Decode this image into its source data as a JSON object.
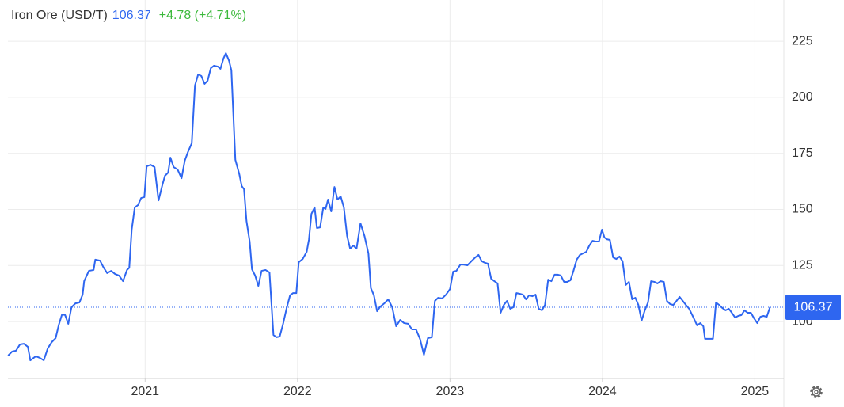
{
  "chart_data": {
    "type": "line",
    "title": "Iron Ore (USD/T)",
    "last_value": 106.37,
    "change_text": "+4.78 (+4.71%)",
    "xlim": [
      2020.1,
      2025.19
    ],
    "xticks": [
      2021,
      2022,
      2023,
      2024,
      2025
    ],
    "ylim": [
      74.6,
      243.4
    ],
    "yticks": [
      100,
      125,
      150,
      175,
      200,
      225
    ],
    "grid": true,
    "series": [
      {
        "name": "Iron Ore",
        "color": "#2e66f0",
        "x": [
          2020.101,
          2020.127,
          2020.153,
          2020.179,
          2020.205,
          2020.231,
          2020.247,
          2020.283,
          2020.309,
          2020.335,
          2020.361,
          2020.387,
          2020.413,
          2020.434,
          2020.455,
          2020.475,
          2020.496,
          2020.517,
          2020.543,
          2020.569,
          2020.59,
          2020.6,
          2020.631,
          2020.662,
          2020.673,
          2020.704,
          2020.725,
          2020.751,
          2020.777,
          2020.803,
          2020.829,
          2020.855,
          2020.881,
          2020.896,
          2020.912,
          2020.932,
          2020.953,
          2020.974,
          2020.995,
          2021.01,
          2021.036,
          2021.062,
          2021.088,
          2021.114,
          2021.13,
          2021.151,
          2021.166,
          2021.187,
          2021.213,
          2021.239,
          2021.26,
          2021.281,
          2021.306,
          2021.327,
          2021.348,
          2021.369,
          2021.39,
          2021.41,
          2021.431,
          2021.452,
          2021.478,
          2021.494,
          2021.514,
          2021.53,
          2021.551,
          2021.566,
          2021.592,
          2021.618,
          2021.634,
          2021.649,
          2021.665,
          2021.686,
          2021.701,
          2021.722,
          2021.743,
          2021.764,
          2021.79,
          2021.816,
          2021.842,
          2021.862,
          2021.883,
          2021.904,
          2021.93,
          2021.951,
          2021.971,
          2021.992,
          2022.008,
          2022.034,
          2022.06,
          2022.075,
          2022.091,
          2022.112,
          2022.127,
          2022.148,
          2022.169,
          2022.184,
          2022.2,
          2022.221,
          2022.242,
          2022.262,
          2022.283,
          2022.304,
          2022.325,
          2022.345,
          2022.366,
          2022.387,
          2022.413,
          2022.439,
          2022.465,
          2022.481,
          2022.501,
          2022.522,
          2022.543,
          2022.569,
          2022.595,
          2022.621,
          2022.647,
          2022.673,
          2022.699,
          2022.725,
          2022.751,
          2022.777,
          2022.803,
          2022.829,
          2022.855,
          2022.881,
          2022.901,
          2022.922,
          2022.948,
          2022.974,
          2023.0,
          2023.021,
          2023.042,
          2023.068,
          2023.088,
          2023.114,
          2023.14,
          2023.166,
          2023.187,
          2023.208,
          2023.229,
          2023.249,
          2023.27,
          2023.291,
          2023.312,
          2023.332,
          2023.353,
          2023.374,
          2023.395,
          2023.416,
          2023.436,
          2023.457,
          2023.478,
          2023.499,
          2023.519,
          2023.54,
          2023.561,
          2023.582,
          2023.603,
          2023.623,
          2023.644,
          2023.665,
          2023.686,
          2023.706,
          2023.727,
          2023.748,
          2023.769,
          2023.79,
          2023.81,
          2023.831,
          2023.852,
          2023.873,
          2023.894,
          2023.914,
          2023.935,
          2023.956,
          2023.977,
          2023.997,
          2024.013,
          2024.029,
          2024.049,
          2024.07,
          2024.091,
          2024.112,
          2024.132,
          2024.153,
          2024.174,
          2024.195,
          2024.216,
          2024.236,
          2024.257,
          2024.278,
          2024.299,
          2024.319,
          2024.34,
          2024.361,
          2024.382,
          2024.403,
          2024.423,
          2024.444,
          2024.465,
          2024.486,
          2024.506,
          2024.527,
          2024.548,
          2024.569,
          2024.595,
          2024.621,
          2024.642,
          2024.662,
          2024.673,
          2024.699,
          2024.725,
          2024.745,
          2024.766,
          2024.787,
          2024.808,
          2024.829,
          2024.849,
          2024.87,
          2024.891,
          2024.912,
          2024.932,
          2024.953,
          2024.974,
          2024.995,
          2025.016,
          2025.036,
          2025.057,
          2025.078,
          2025.099
        ],
        "values": [
          84.8,
          86.6,
          87.0,
          89.8,
          90.1,
          88.7,
          82.7,
          84.5,
          83.8,
          82.7,
          88.0,
          90.8,
          92.6,
          98.6,
          103.2,
          102.9,
          99.0,
          106.4,
          108.1,
          108.5,
          112.0,
          118.0,
          122.6,
          123.0,
          127.6,
          127.2,
          124.4,
          121.6,
          122.6,
          121.2,
          120.5,
          118.0,
          123.0,
          124.0,
          141.0,
          150.9,
          151.9,
          155.1,
          155.5,
          169.2,
          169.9,
          168.9,
          154.0,
          161.1,
          165.0,
          166.4,
          173.1,
          168.9,
          167.8,
          163.9,
          171.7,
          175.6,
          179.5,
          205.3,
          210.2,
          209.5,
          206.0,
          207.4,
          213.0,
          214.1,
          213.7,
          212.7,
          217.3,
          219.7,
          216.2,
          212.0,
          172.1,
          165.7,
          160.4,
          159.0,
          144.9,
          135.7,
          123.3,
          120.5,
          115.9,
          122.6,
          123.0,
          121.9,
          94.0,
          93.0,
          93.3,
          98.6,
          106.4,
          111.7,
          112.7,
          112.7,
          126.5,
          127.9,
          131.1,
          136.7,
          148.0,
          150.9,
          141.7,
          142.0,
          150.9,
          150.2,
          154.4,
          149.1,
          160.0,
          154.4,
          155.8,
          150.9,
          138.2,
          132.5,
          133.9,
          132.5,
          143.8,
          138.2,
          130.4,
          114.9,
          111.7,
          104.6,
          106.7,
          108.1,
          109.9,
          106.4,
          97.9,
          100.7,
          99.3,
          99.0,
          96.5,
          96.5,
          92.3,
          85.2,
          92.6,
          93.0,
          109.2,
          110.6,
          110.3,
          112.0,
          114.5,
          122.3,
          122.6,
          125.4,
          125.4,
          125.1,
          126.9,
          128.6,
          129.7,
          126.9,
          126.2,
          125.8,
          119.1,
          118.0,
          117.0,
          103.9,
          107.4,
          109.2,
          105.7,
          106.4,
          112.7,
          112.4,
          112.0,
          109.9,
          111.7,
          111.3,
          112.0,
          105.7,
          105.0,
          107.4,
          118.7,
          118.0,
          120.9,
          120.9,
          120.5,
          117.7,
          117.7,
          118.4,
          122.6,
          127.6,
          129.7,
          130.4,
          131.1,
          133.9,
          136.0,
          135.7,
          135.7,
          141.0,
          137.5,
          136.7,
          136.4,
          128.6,
          127.9,
          129.0,
          126.9,
          116.3,
          117.7,
          109.9,
          110.6,
          107.4,
          100.4,
          105.0,
          108.5,
          118.0,
          117.7,
          117.0,
          118.0,
          117.7,
          109.2,
          107.8,
          107.4,
          109.2,
          111.0,
          109.2,
          107.4,
          105.7,
          102.1,
          98.3,
          99.3,
          97.9,
          92.3,
          92.3,
          92.3,
          108.5,
          107.4,
          106.0,
          105.0,
          105.7,
          103.9,
          101.8,
          102.5,
          102.9,
          105.0,
          103.9,
          103.9,
          101.4,
          99.3,
          102.1,
          102.5,
          102.1,
          106.37
        ]
      }
    ]
  }
}
